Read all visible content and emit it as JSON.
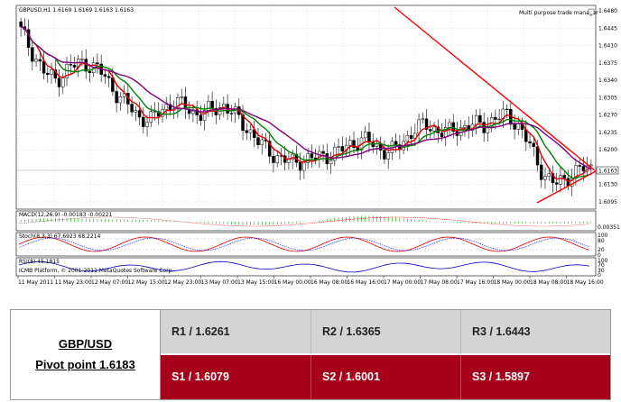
{
  "chart": {
    "header": "GBPUSD,H1  1.6169 1.6169 1.6163 1.6163",
    "manager_label": "Multi purpose trade manager",
    "price_axis": [
      "1.6480",
      "1.6445",
      "1.6410",
      "1.6375",
      "1.6340",
      "1.6305",
      "1.6270",
      "1.6235",
      "1.6200",
      "1.6163",
      "1.6130",
      "1.6095"
    ],
    "current_price": "1.6163",
    "macd_label": "MACD(12,26,9) -0.00183 -0.00221",
    "macd_axis": [
      "0.00351"
    ],
    "stoch_label": "Stoch(8,3,3) 67.6923 68.2214",
    "stoch_axis": [
      "100",
      "80",
      "20",
      "0"
    ],
    "rsi_label": "RSI(8) 45.1815",
    "rsi_axis": [
      "100",
      "70",
      "30",
      "0"
    ],
    "copyright": "ICMB Platform, © 2001-2011 MetaQuotes Software Corp.",
    "time_axis": [
      "11 May 2011",
      "11 May 23:00",
      "12 May 07:00",
      "12 May 15:00",
      "12 May 23:00",
      "13 May 07:00",
      "13 May 15:00",
      "16 May 00:00",
      "16 May 08:00",
      "16 May 16:00",
      "17 May 00:00",
      "17 May 08:00",
      "17 May 16:00",
      "18 May 00:00",
      "18 May 08:00",
      "18 May 16:00"
    ],
    "colors": {
      "bull": "#ffffff",
      "bear": "#000000",
      "ma_red": "#e00000",
      "ma_green": "#008000",
      "ma_purple": "#800080",
      "trendline": "#ff0000"
    }
  },
  "pivot_table": {
    "pair": "GBP/USD",
    "pivot": "Pivot point 1.6183",
    "r1": "R1 / 1.6261",
    "r2": "R2 / 1.6365",
    "r3": "R3 / 1.6443",
    "s1": "S1 / 1.6079",
    "s2": "S2 / 1.6001",
    "s3": "S3 / 1.5897",
    "colors": {
      "resistance_bg": "#d4d4d4",
      "support_bg": "#a6001a"
    }
  }
}
